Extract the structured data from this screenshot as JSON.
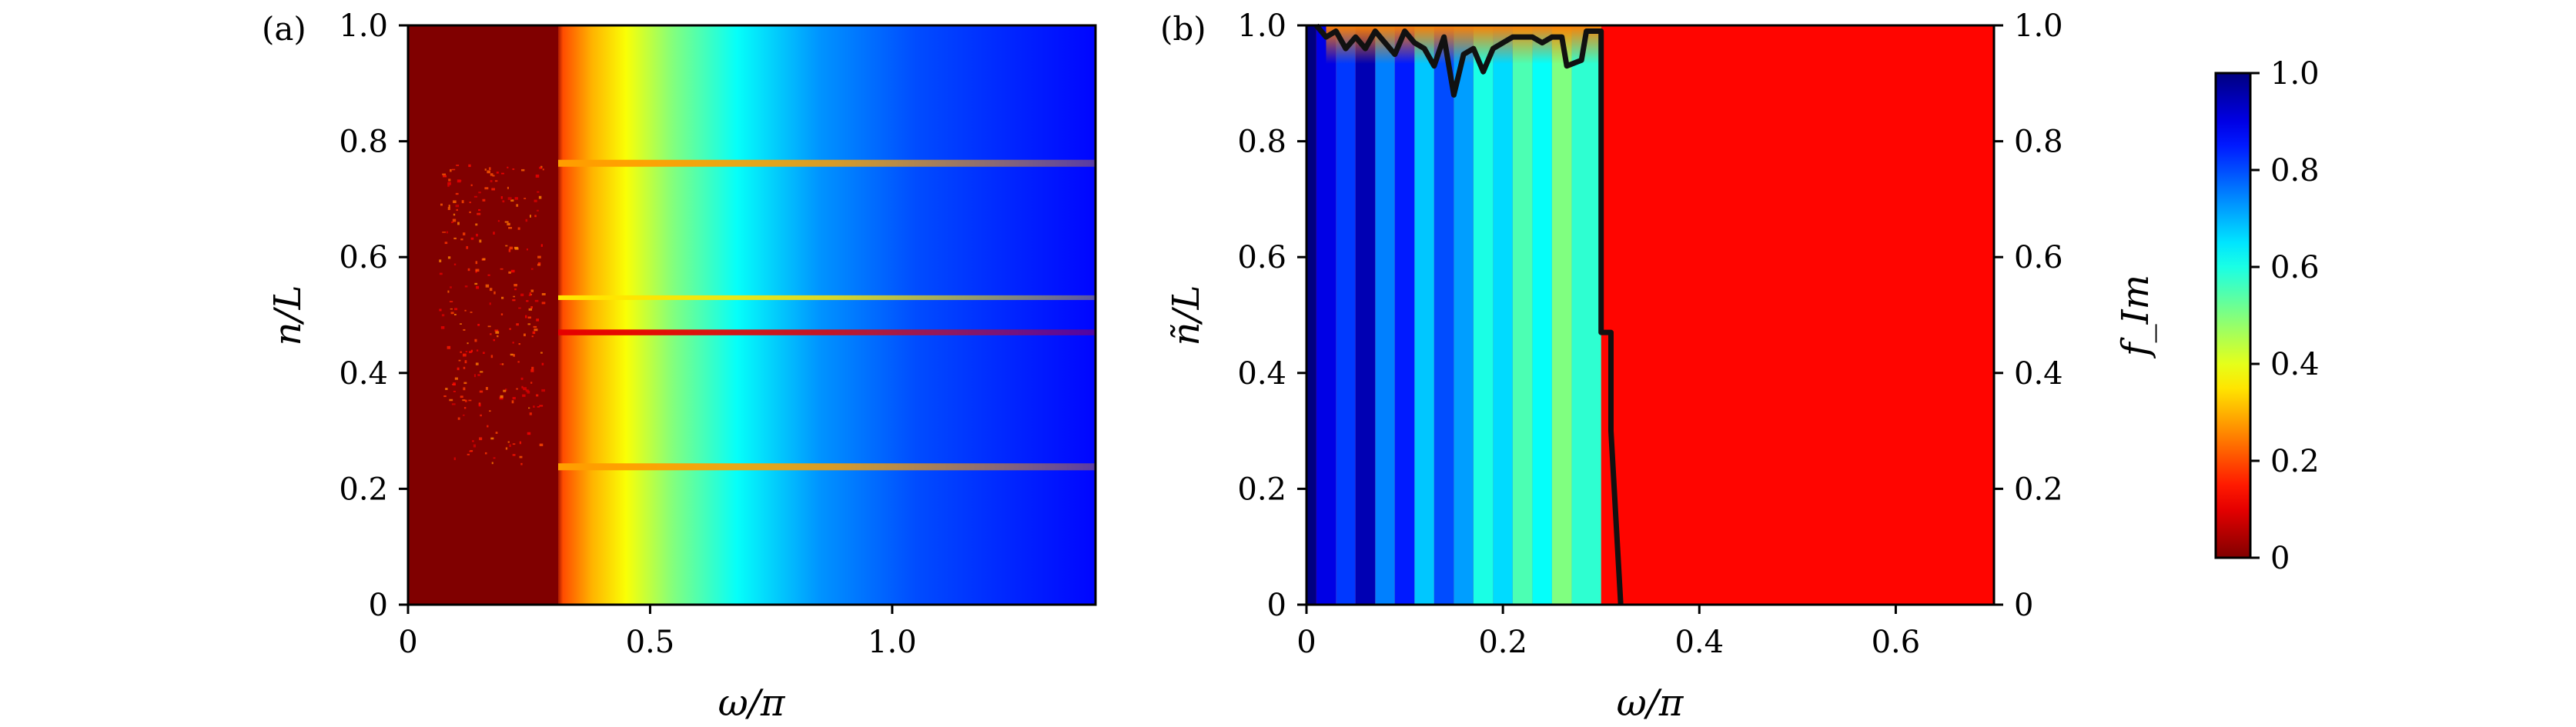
{
  "chart_data": [
    {
      "panel": "(a)",
      "type": "heatmap",
      "xlabel": "ω/π",
      "ylabel": "n/L",
      "xlim": [
        0,
        1.42
      ],
      "ylim": [
        0,
        1.0
      ],
      "xticks": [
        {
          "v": 0,
          "t": "0"
        },
        {
          "v": 0.5,
          "t": "0.5"
        },
        {
          "v": 1.0,
          "t": "1.0"
        }
      ],
      "yticks": [
        {
          "v": 0,
          "t": "0"
        },
        {
          "v": 0.2,
          "t": "0.2"
        },
        {
          "v": 0.4,
          "t": "0.4"
        },
        {
          "v": 0.6,
          "t": "0.6"
        },
        {
          "v": 0.8,
          "t": "0.8"
        },
        {
          "v": 1.0,
          "t": "1.0"
        }
      ],
      "colormap": "jet_r",
      "gradient_stops": [
        {
          "x": 0.0,
          "v": 0.0
        },
        {
          "x": 0.305,
          "v": 0.0
        },
        {
          "x": 0.32,
          "v": 0.2
        },
        {
          "x": 0.38,
          "v": 0.3
        },
        {
          "x": 0.45,
          "v": 0.38
        },
        {
          "x": 0.55,
          "v": 0.5
        },
        {
          "x": 0.68,
          "v": 0.62
        },
        {
          "x": 0.85,
          "v": 0.73
        },
        {
          "x": 1.05,
          "v": 0.8
        },
        {
          "x": 1.25,
          "v": 0.84
        },
        {
          "x": 1.42,
          "v": 0.87
        }
      ],
      "bands": [
        {
          "y": 0.238,
          "width": 0.012,
          "value": 0.28
        },
        {
          "y": 0.47,
          "width": 0.01,
          "value": 0.1
        },
        {
          "y": 0.53,
          "width": 0.008,
          "value": 0.35
        },
        {
          "y": 0.762,
          "width": 0.012,
          "value": 0.28
        }
      ],
      "low_region": {
        "x_end": 0.31,
        "value": 0.0
      }
    },
    {
      "panel": "(b)",
      "type": "heatmap",
      "xlabel": "ω/π",
      "ylabel": "ñ/L",
      "ylabel_right": "f_Im",
      "xlim": [
        0,
        0.7
      ],
      "ylim": [
        0,
        1.0
      ],
      "xticks": [
        {
          "v": 0,
          "t": "0"
        },
        {
          "v": 0.2,
          "t": "0.2"
        },
        {
          "v": 0.4,
          "t": "0.4"
        },
        {
          "v": 0.6,
          "t": "0.6"
        }
      ],
      "yticks": [
        {
          "v": 0,
          "t": "0"
        },
        {
          "v": 0.2,
          "t": "0.2"
        },
        {
          "v": 0.4,
          "t": "0.4"
        },
        {
          "v": 0.6,
          "t": "0.6"
        },
        {
          "v": 0.8,
          "t": "0.8"
        },
        {
          "v": 1.0,
          "t": "1.0"
        }
      ],
      "colormap": "jet_r",
      "right_region_value": 0.13,
      "left_region_columns": [
        {
          "x0": 0.0,
          "x1": 0.01,
          "v": 1.0
        },
        {
          "x0": 0.01,
          "x1": 0.03,
          "v": 0.9
        },
        {
          "x0": 0.03,
          "x1": 0.05,
          "v": 0.82
        },
        {
          "x0": 0.05,
          "x1": 0.07,
          "v": 0.95
        },
        {
          "x0": 0.07,
          "x1": 0.09,
          "v": 0.75
        },
        {
          "x0": 0.09,
          "x1": 0.11,
          "v": 0.85
        },
        {
          "x0": 0.11,
          "x1": 0.13,
          "v": 0.68
        },
        {
          "x0": 0.13,
          "x1": 0.15,
          "v": 0.8
        },
        {
          "x0": 0.15,
          "x1": 0.17,
          "v": 0.72
        },
        {
          "x0": 0.17,
          "x1": 0.19,
          "v": 0.6
        },
        {
          "x0": 0.19,
          "x1": 0.21,
          "v": 0.66
        },
        {
          "x0": 0.21,
          "x1": 0.23,
          "v": 0.55
        },
        {
          "x0": 0.23,
          "x1": 0.25,
          "v": 0.62
        },
        {
          "x0": 0.25,
          "x1": 0.27,
          "v": 0.5
        },
        {
          "x0": 0.27,
          "x1": 0.3,
          "v": 0.58
        }
      ],
      "boundary_line": [
        [
          0.01,
          1.0
        ],
        [
          0.02,
          0.98
        ],
        [
          0.03,
          0.99
        ],
        [
          0.04,
          0.96
        ],
        [
          0.05,
          0.98
        ],
        [
          0.06,
          0.96
        ],
        [
          0.07,
          0.99
        ],
        [
          0.08,
          0.97
        ],
        [
          0.09,
          0.95
        ],
        [
          0.1,
          0.99
        ],
        [
          0.11,
          0.97
        ],
        [
          0.12,
          0.96
        ],
        [
          0.13,
          0.93
        ],
        [
          0.14,
          0.98
        ],
        [
          0.15,
          0.88
        ],
        [
          0.16,
          0.95
        ],
        [
          0.17,
          0.96
        ],
        [
          0.18,
          0.92
        ],
        [
          0.19,
          0.96
        ],
        [
          0.2,
          0.97
        ],
        [
          0.21,
          0.98
        ],
        [
          0.22,
          0.98
        ],
        [
          0.23,
          0.98
        ],
        [
          0.24,
          0.97
        ],
        [
          0.25,
          0.98
        ],
        [
          0.26,
          0.98
        ],
        [
          0.265,
          0.93
        ],
        [
          0.28,
          0.94
        ],
        [
          0.285,
          0.99
        ],
        [
          0.3,
          0.99
        ],
        [
          0.3,
          0.47
        ],
        [
          0.31,
          0.47
        ],
        [
          0.31,
          0.3
        ],
        [
          0.32,
          0.0
        ]
      ]
    }
  ],
  "colorbar": {
    "label": "f_Im",
    "range": [
      0,
      1.0
    ],
    "ticks": [
      {
        "v": 0,
        "t": "0"
      },
      {
        "v": 0.2,
        "t": "0.2"
      },
      {
        "v": 0.4,
        "t": "0.4"
      },
      {
        "v": 0.6,
        "t": "0.6"
      },
      {
        "v": 0.8,
        "t": "0.8"
      },
      {
        "v": 1.0,
        "t": "1.0"
      }
    ],
    "colormap": "jet_r"
  }
}
